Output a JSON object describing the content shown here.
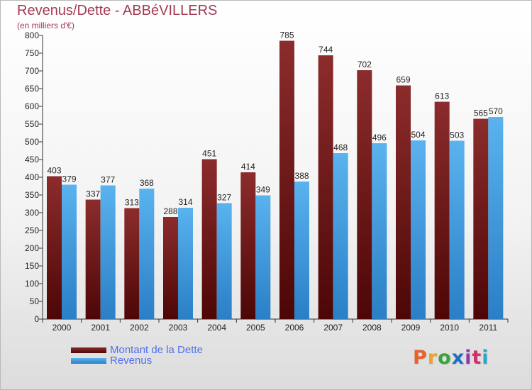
{
  "title": "Revenus/Dette - ABBéVILLERS",
  "subtitle": "(en milliers d'€)",
  "chart_data": {
    "type": "bar",
    "categories": [
      "2000",
      "2001",
      "2002",
      "2003",
      "2004",
      "2005",
      "2006",
      "2007",
      "2008",
      "2009",
      "2010",
      "2011"
    ],
    "series": [
      {
        "name": "Montant de la Dette",
        "color": "#7a1a1a",
        "values": [
          403,
          337,
          313,
          288,
          451,
          414,
          785,
          744,
          702,
          659,
          613,
          565
        ]
      },
      {
        "name": "Revenus",
        "color": "#4aa6e8",
        "values": [
          379,
          377,
          368,
          314,
          327,
          349,
          388,
          468,
          496,
          504,
          503,
          570
        ]
      }
    ],
    "ylim": [
      0,
      800
    ],
    "ytick_step": 50,
    "grid": false,
    "legend": "bottom-left"
  },
  "logo": {
    "text": "Proxiti",
    "colors": [
      "#e8612a",
      "#f2a22c",
      "#3aa33c",
      "#1f6fc0",
      "#8d3ca8",
      "#d02f6a",
      "#2aa6c8"
    ]
  }
}
